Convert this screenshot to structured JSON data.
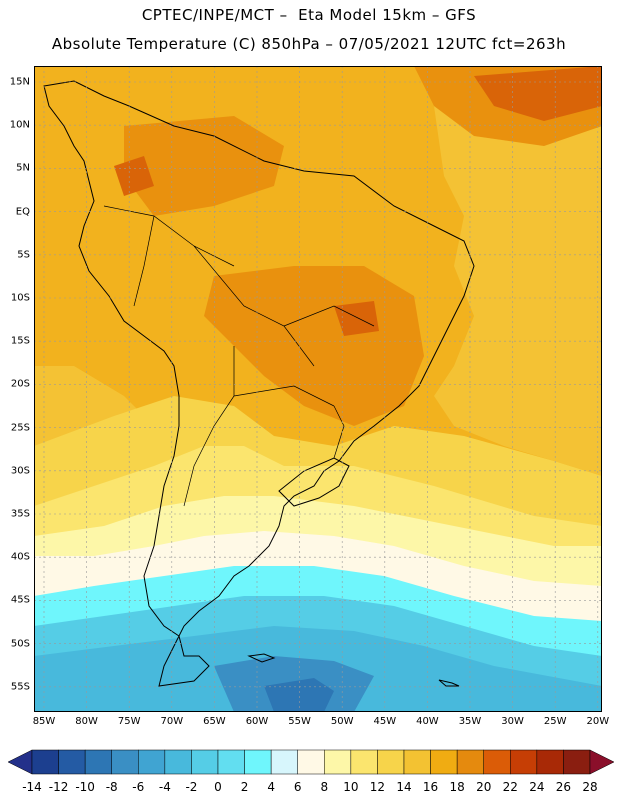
{
  "header": {
    "line1": "CPTEC/INPE/MCT –  Eta Model 15km – GFS",
    "line2": "Absolute Temperature (C) 850hPa – 07/05/2021 12UTC fct=263h"
  },
  "map": {
    "lat_labels": [
      "15N",
      "10N",
      "5N",
      "EQ",
      "5S",
      "10S",
      "15S",
      "20S",
      "25S",
      "30S",
      "35S",
      "40S",
      "45S",
      "50S",
      "55S"
    ],
    "lon_labels": [
      "85W",
      "80W",
      "75W",
      "70W",
      "65W",
      "60W",
      "55W",
      "50W",
      "45W",
      "40W",
      "35W",
      "30W",
      "25W",
      "20W"
    ],
    "background_color": "#f2b21e"
  },
  "colorbar": {
    "labels": [
      "-14",
      "-12",
      "-10",
      "-8",
      "-6",
      "-4",
      "-2",
      "0",
      "2",
      "4",
      "6",
      "8",
      "10",
      "12",
      "14",
      "16",
      "18",
      "20",
      "22",
      "24",
      "26",
      "28"
    ],
    "colors": [
      "#1c3f8f",
      "#245ba4",
      "#2d76b4",
      "#3a8fc4",
      "#40a4d2",
      "#48b9dc",
      "#55cde6",
      "#62def0",
      "#6ff6fc",
      "#d7f6fc",
      "#fff9e6",
      "#fdf7a8",
      "#fbe56e",
      "#f7d44a",
      "#f3c232",
      "#f0ac12",
      "#e58a0e",
      "#db5c07",
      "#c63e05",
      "#a82906",
      "#8a1e10"
    ],
    "under_color": "#23308a",
    "over_color": "#8a0f2a"
  }
}
